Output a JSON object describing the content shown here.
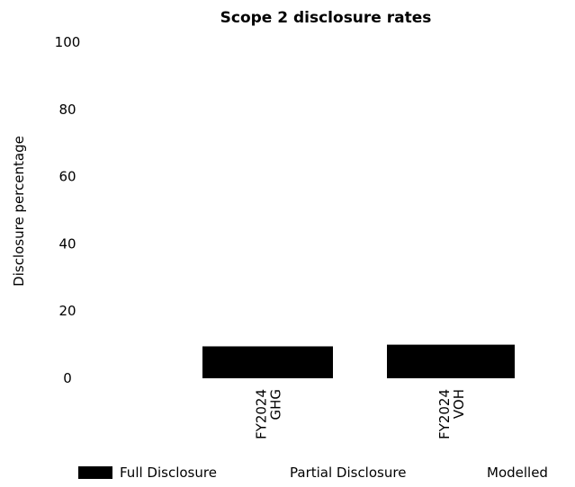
{
  "chart_data": {
    "type": "bar",
    "title": "Scope 2 disclosure rates",
    "ylabel": "Disclosure percentage",
    "xlabel": "",
    "ylim": [
      0,
      100
    ],
    "yticks": [
      0,
      20,
      40,
      60,
      80,
      100
    ],
    "categories": [
      [
        "FY2024",
        "GHG"
      ],
      [
        "FY2024",
        "VOH"
      ]
    ],
    "series": [
      {
        "name": "Full Disclosure",
        "color": "#000000",
        "values": [
          9.5,
          10
        ]
      },
      {
        "name": "Partial Disclosure",
        "color": "#ffffff",
        "values": [
          0,
          0
        ]
      },
      {
        "name": "Modelled",
        "color": "#ffffff",
        "values": [
          0,
          0
        ]
      }
    ],
    "stacked": true,
    "grid": false,
    "legend_position": "bottom"
  }
}
